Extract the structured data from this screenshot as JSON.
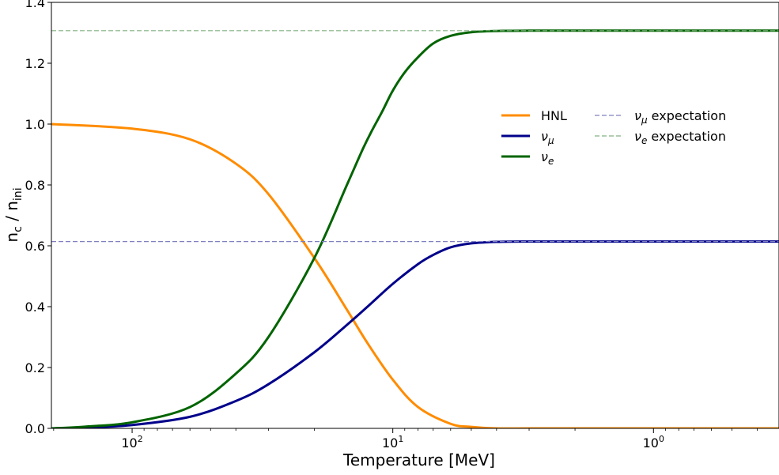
{
  "chart_data": {
    "type": "line",
    "x_scale": "log",
    "x_reversed": true,
    "xlabel": "Temperature [MeV]",
    "ylabel": "n_c / n_ini",
    "xlim": [
      204,
      0.33
    ],
    "ylim": [
      0.0,
      1.4
    ],
    "x_ticks": [
      {
        "value": 100,
        "base": "10",
        "exp": "2"
      },
      {
        "value": 10,
        "base": "10",
        "exp": "1"
      },
      {
        "value": 1,
        "base": "10",
        "exp": "0"
      }
    ],
    "y_ticks": [
      "0.0",
      "0.2",
      "0.4",
      "0.6",
      "0.8",
      "1.0",
      "1.2",
      "1.4"
    ],
    "grid": false,
    "legend_position": "upper-right",
    "series": [
      {
        "name": "HNL",
        "color": "#ff8c00",
        "style": "solid",
        "x": [
          204,
          100,
          60,
          40,
          30,
          20,
          15,
          12.5,
          10,
          8,
          6,
          5,
          4,
          3,
          2,
          1,
          0.5,
          0.33
        ],
        "y": [
          1.0,
          0.985,
          0.95,
          0.87,
          0.77,
          0.56,
          0.39,
          0.28,
          0.16,
          0.07,
          0.015,
          0.005,
          0.0,
          0.0,
          0.0,
          0.0,
          0.0,
          0.0
        ]
      },
      {
        "name": "ν_μ",
        "color": "#00008b",
        "style": "solid",
        "x": [
          204,
          150,
          100,
          60,
          40,
          30,
          20,
          15,
          12.5,
          10,
          8,
          7,
          6,
          5,
          4,
          3,
          2,
          1,
          0.5,
          0.33
        ],
        "y": [
          0.0,
          0.003,
          0.011,
          0.038,
          0.09,
          0.145,
          0.25,
          0.34,
          0.4,
          0.475,
          0.54,
          0.57,
          0.595,
          0.608,
          0.613,
          0.614,
          0.614,
          0.614,
          0.614,
          0.614
        ]
      },
      {
        "name": "ν_e",
        "color": "#006400",
        "style": "solid",
        "x": [
          204,
          150,
          100,
          60,
          40,
          30,
          20,
          15,
          13,
          12,
          11,
          10,
          9,
          8,
          7,
          6,
          5,
          4,
          3,
          2,
          1,
          0.5,
          0.33
        ],
        "y": [
          0.0,
          0.006,
          0.02,
          0.07,
          0.18,
          0.3,
          0.56,
          0.8,
          0.92,
          0.98,
          1.04,
          1.11,
          1.17,
          1.22,
          1.265,
          1.29,
          1.302,
          1.306,
          1.307,
          1.307,
          1.307,
          1.307,
          1.307
        ]
      },
      {
        "name": "ν_μ expectation",
        "color": "#8080c0",
        "style": "dashed",
        "x": [
          204,
          0.33
        ],
        "y": [
          0.614,
          0.614
        ]
      },
      {
        "name": "ν_e expectation",
        "color": "#80b080",
        "style": "dashed",
        "x": [
          204,
          0.33
        ],
        "y": [
          1.307,
          1.307
        ]
      }
    ],
    "legend": [
      {
        "label": "HNL",
        "base": "HNL",
        "sub": "",
        "italic": false,
        "color": "#ff8c00",
        "style": "solid"
      },
      {
        "label": "ν_μ",
        "base": "ν",
        "sub": "μ",
        "italic": true,
        "color": "#00008b",
        "style": "solid"
      },
      {
        "label": "ν_e",
        "base": "ν",
        "sub": "e",
        "italic": true,
        "color": "#006400",
        "style": "solid"
      },
      {
        "label": "ν_μ expectation",
        "base": "ν",
        "sub": "μ",
        "suffix": " expectation",
        "italic": true,
        "color": "#8080c0",
        "style": "dashed"
      },
      {
        "label": "ν_e expectation",
        "base": "ν",
        "sub": "e",
        "suffix": " expectation",
        "italic": true,
        "color": "#80b080",
        "style": "dashed"
      }
    ]
  }
}
